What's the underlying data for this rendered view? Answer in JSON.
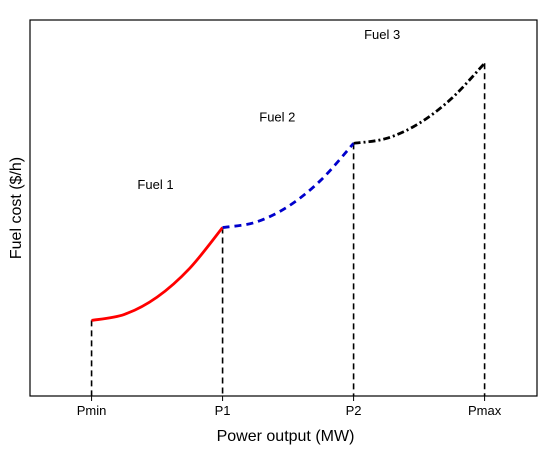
{
  "chart_data": {
    "type": "line",
    "title": "",
    "xlabel": "Power output (MW)",
    "ylabel": "Fuel cost ($/h)",
    "grid": false,
    "legend": "none",
    "x_ticks": [
      {
        "label": "Pmin",
        "value": 0
      },
      {
        "label": "P1",
        "value": 1
      },
      {
        "label": "P2",
        "value": 2
      },
      {
        "label": "Pmax",
        "value": 3
      }
    ],
    "xlim": [
      -0.47,
      3.4
    ],
    "ylim": [
      0,
      100
    ],
    "series": [
      {
        "name": "Fuel 1",
        "color": "#ff0000",
        "style": "solid",
        "x": [
          0,
          0.25,
          0.5,
          0.75,
          1
        ],
        "y": [
          20.1,
          21.7,
          26.3,
          34.0,
          44.8
        ]
      },
      {
        "name": "Fuel 2",
        "color": "#0000cc",
        "style": "dashed",
        "x": [
          1,
          1.25,
          1.5,
          1.75,
          2
        ],
        "y": [
          44.8,
          46.2,
          50.4,
          57.4,
          67.2
        ]
      },
      {
        "name": "Fuel 3",
        "color": "#000000",
        "style": "dashdot",
        "x": [
          2,
          2.25,
          2.5,
          2.75,
          3
        ],
        "y": [
          67.2,
          68.5,
          72.5,
          79.2,
          88.5
        ]
      }
    ]
  }
}
